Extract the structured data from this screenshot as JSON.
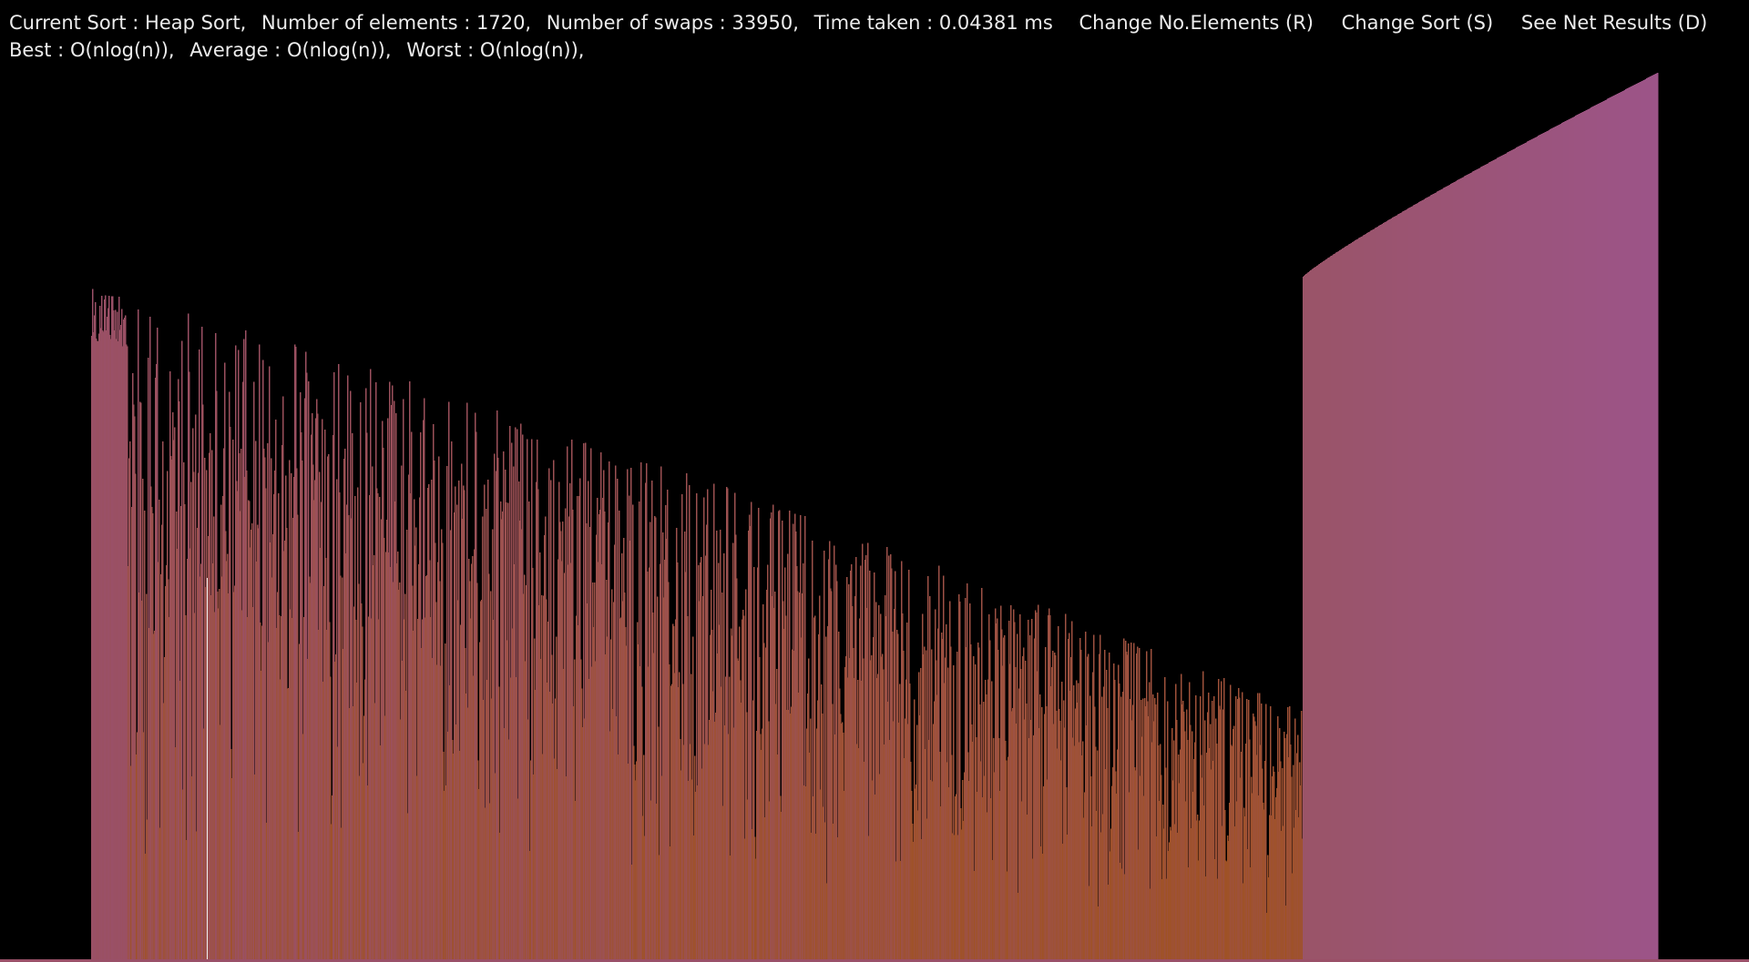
{
  "status": {
    "current_sort_label": "Current Sort :",
    "current_sort_value": "Heap Sort,",
    "elements_label": "Number of elements :",
    "elements_value": "1720,",
    "swaps_label": "Number of swaps :",
    "swaps_value": "33950,",
    "time_label": "Time taken :",
    "time_value": "0.04381 ms"
  },
  "controls": {
    "change_elements": "Change No.Elements (R)",
    "change_sort": "Change Sort (S)",
    "net_results": "See Net Results (D)"
  },
  "complexity": {
    "best_label": "Best :",
    "best_value": "O(nlog(n)),",
    "average_label": "Average :",
    "average_value": "O(nlog(n)),",
    "worst_label": "Worst :",
    "worst_value": "O(nlog(n)),"
  },
  "chart_data": {
    "type": "bar",
    "element_count": 1720,
    "sorted_fraction": 0.2267,
    "highlight_fraction": 0.0738,
    "value_range": [
      0,
      1
    ],
    "heap_peak_fraction": 0.76,
    "sorted_start_fraction": 0.77,
    "sorted_end_fraction": 1.0,
    "colors": {
      "background": "#000000",
      "tall_bar": "#9a5068",
      "short_bar": "#a0521a",
      "sorted_low": "#9a5468",
      "sorted_high": "#9c5488",
      "highlight": "#f0f0f0",
      "text": "#ececec"
    }
  }
}
